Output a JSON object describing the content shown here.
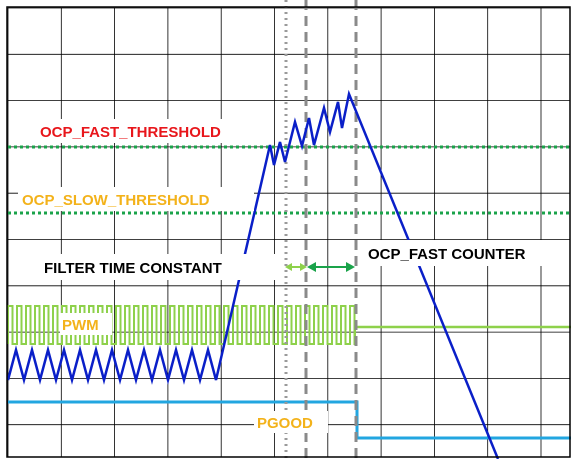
{
  "labels": {
    "ocp_fast_threshold": "OCP_FAST_THRESHOLD",
    "ocp_slow_threshold": "OCP_SLOW_THRESHOLD",
    "filter_time_constant": "FILTER TIME CONSTANT",
    "ocp_fast_counter": "OCP_FAST COUNTER",
    "pwm": "PWM",
    "pgood": "PGOOD"
  },
  "colors": {
    "grid": "#000000",
    "current": "#0a1fc8",
    "threshold": "#1aa34a",
    "pwm": "#8ed14b",
    "pgood": "#22a6e0",
    "fast_label": "#e8161b",
    "slow_label": "#f3b21a",
    "pwm_label": "#f3b21a",
    "pgood_label": "#f3b21a",
    "filter_label": "#000000",
    "counter_label": "#000000",
    "filter_arrow": "#8ed14b",
    "counter_arrow": "#1aa34a",
    "dotted_marker": "#9a9a9a",
    "dashed_marker": "#8a8a8a"
  }
}
